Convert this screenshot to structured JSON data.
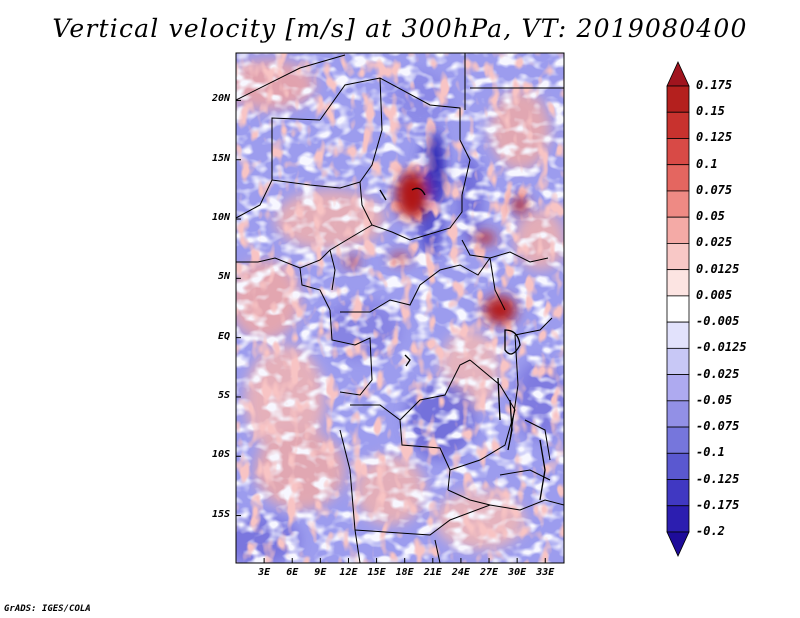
{
  "title": "Vertical velocity [m/s] at 300hPa, VT: 2019080400",
  "footer": "GrADS: IGES/COLA",
  "lat_labels": [
    "20N",
    "15N",
    "10N",
    "5N",
    "EQ",
    "5S",
    "10S",
    "15S"
  ],
  "lon_labels": [
    "3E",
    "6E",
    "9E",
    "12E",
    "15E",
    "18E",
    "21E",
    "24E",
    "27E",
    "30E",
    "33E"
  ],
  "colorbar": {
    "labels": [
      "0.175",
      "0.15",
      "0.125",
      "0.1",
      "0.075",
      "0.05",
      "0.025",
      "0.0125",
      "0.005",
      "-0.005",
      "-0.0125",
      "-0.025",
      "-0.05",
      "-0.075",
      "-0.1",
      "-0.125",
      "-0.175",
      "-0.2"
    ],
    "colors": [
      "#a0141e",
      "#b4201e",
      "#c8322e",
      "#d84a46",
      "#e46660",
      "#ee8a84",
      "#f4aaa6",
      "#f8c8c6",
      "#fce4e2",
      "#ffffff",
      "#e2e2fc",
      "#c8c8f6",
      "#aeaaf0",
      "#9290e6",
      "#7676dc",
      "#5a58d0",
      "#4038c2",
      "#2c1eb0",
      "#1e0c9a"
    ]
  },
  "map": {
    "lat_range": [
      -19,
      24
    ],
    "lon_range": [
      0,
      35
    ],
    "features": [
      {
        "name": "strong-ascent",
        "lat": 11.5,
        "lon": 19.2,
        "value": 0.15
      },
      {
        "name": "ascent-east-africa",
        "lat": 2.5,
        "lon": 27.5,
        "value": 0.12
      },
      {
        "name": "ascent-ethiopia",
        "lat": 11.5,
        "lon": 29.5,
        "value": 0.1
      },
      {
        "name": "descent-band",
        "lat": 13.5,
        "lon": 21.5,
        "value": -0.15
      }
    ]
  }
}
